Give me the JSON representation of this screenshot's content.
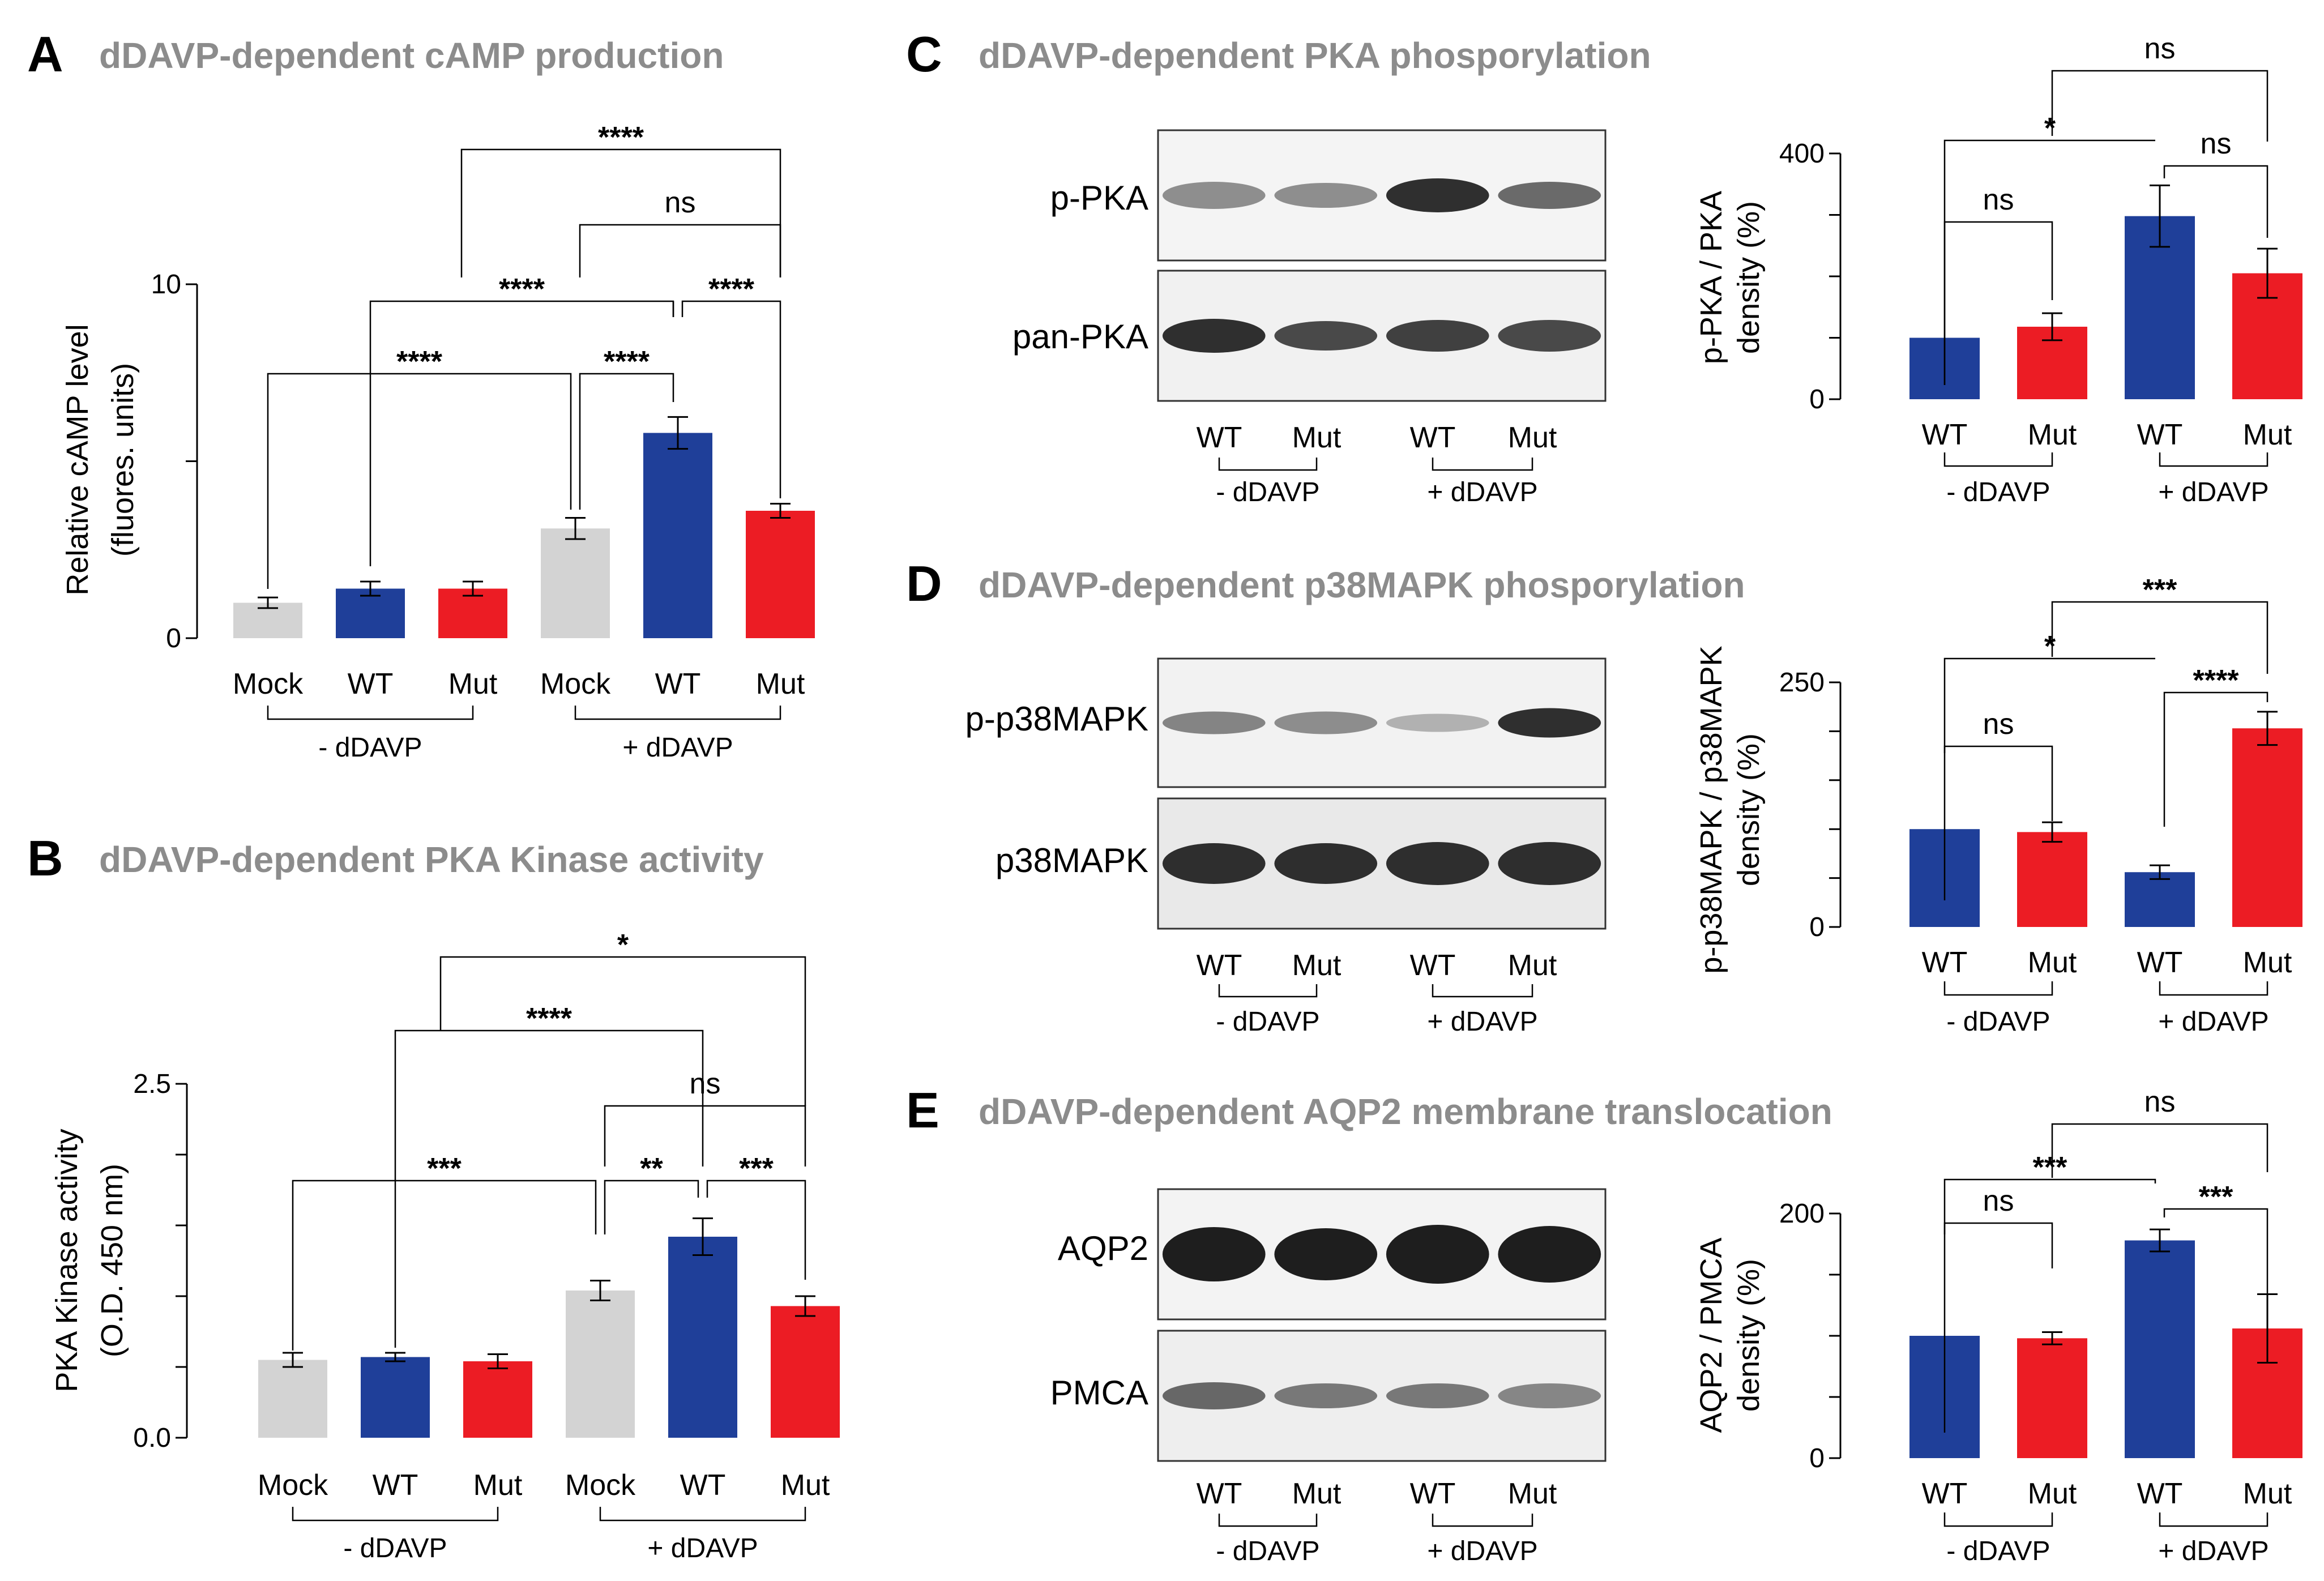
{
  "colors": {
    "mock": "#d3d3d3",
    "wt": "#1f3f99",
    "mut": "#ec1c24",
    "title_gray": "#8c8c8c",
    "blot_bg": "#efefef",
    "band": "#1a1a1a"
  },
  "panels": {
    "A": {
      "letter": "A",
      "title": "dDAVP-dependent cAMP production"
    },
    "B": {
      "letter": "B",
      "title": "dDAVP-dependent PKA Kinase activity"
    },
    "C": {
      "letter": "C",
      "title": "dDAVP-dependent PKA phosporylation",
      "blot_labels": [
        "p-PKA",
        "pan-PKA"
      ]
    },
    "D": {
      "letter": "D",
      "title": "dDAVP-dependent p38MAPK phosporylation",
      "blot_labels": [
        "p-p38MAPK",
        "p38MAPK"
      ]
    },
    "E": {
      "letter": "E",
      "title": "dDAVP-dependent AQP2 membrane translocation",
      "blot_labels": [
        "AQP2",
        "PMCA"
      ]
    }
  },
  "blot_lane_labels": [
    "WT",
    "Mut",
    "WT",
    "Mut"
  ],
  "blot_groups": [
    "- dDAVP",
    "+ dDAVP"
  ],
  "chart_data": [
    {
      "id": "A",
      "type": "bar",
      "title": "dDAVP-dependent cAMP production",
      "categories": [
        "Mock",
        "WT",
        "Mut",
        "Mock",
        "WT",
        "Mut"
      ],
      "values": [
        1.0,
        1.4,
        1.4,
        3.1,
        5.8,
        3.6
      ],
      "errors": [
        0.15,
        0.2,
        0.2,
        0.3,
        0.45,
        0.2
      ],
      "bar_colors": [
        "mock",
        "wt",
        "mut",
        "mock",
        "wt",
        "mut"
      ],
      "groups": [
        "- dDAVP",
        "+ dDAVP"
      ],
      "ylabel": [
        "Relative cAMP level",
        "(fluores. units)"
      ],
      "ylim": [
        0,
        10
      ],
      "yticks": [
        0,
        5,
        10
      ],
      "ytick_labels": [
        "0",
        "",
        "10"
      ],
      "comparisons": [
        {
          "from": 0,
          "to": 3,
          "label": "****"
        },
        {
          "from": 3,
          "to": 4,
          "label": "****"
        },
        {
          "from": 1,
          "to": 4,
          "label": "****"
        },
        {
          "from": 4,
          "to": 5,
          "label": "****"
        },
        {
          "from": 2,
          "to": 5,
          "label": "****"
        },
        {
          "from": 3,
          "to": 5,
          "label": "ns"
        },
        {
          "from": 2,
          "to": 5,
          "label": "****"
        }
      ]
    },
    {
      "id": "B",
      "type": "bar",
      "title": "dDAVP-dependent PKA Kinase activity",
      "categories": [
        "Mock",
        "WT",
        "Mut",
        "Mock",
        "WT",
        "Mut"
      ],
      "values": [
        0.55,
        0.57,
        0.54,
        1.04,
        1.42,
        0.93
      ],
      "errors": [
        0.05,
        0.03,
        0.05,
        0.07,
        0.13,
        0.07
      ],
      "bar_colors": [
        "mock",
        "wt",
        "mut",
        "mock",
        "wt",
        "mut"
      ],
      "groups": [
        "- dDAVP",
        "+ dDAVP"
      ],
      "ylabel": [
        "PKA Kinase activity",
        "(O.D. 450 nm)"
      ],
      "ylim": [
        0,
        2.5
      ],
      "yticks": [
        0,
        0.5,
        1.0,
        1.5,
        2.0,
        2.5
      ],
      "ytick_labels": [
        "0.0",
        "",
        "",
        "",
        "",
        "2.5"
      ],
      "comparisons": [
        {
          "from": 0,
          "to": 3,
          "label": "***"
        },
        {
          "from": 3,
          "to": 4,
          "label": "**"
        },
        {
          "from": 4,
          "to": 5,
          "label": "***"
        },
        {
          "from": 3,
          "to": 5,
          "label": "ns"
        },
        {
          "from": 1,
          "to": 4,
          "label": "****"
        },
        {
          "from": 2,
          "to": 5,
          "label": "*"
        }
      ]
    },
    {
      "id": "C",
      "type": "bar",
      "title": "dDAVP-dependent PKA phosporylation",
      "categories": [
        "WT",
        "Mut",
        "WT",
        "Mut"
      ],
      "values": [
        100,
        118,
        298,
        205
      ],
      "errors": [
        0,
        22,
        50,
        40
      ],
      "bar_colors": [
        "wt",
        "mut",
        "wt",
        "mut"
      ],
      "groups": [
        "- dDAVP",
        "+ dDAVP"
      ],
      "ylabel": [
        "p-PKA / PKA",
        "density (%)"
      ],
      "ylim": [
        0,
        400
      ],
      "yticks": [
        0,
        100,
        200,
        300,
        400
      ],
      "ytick_labels": [
        "0",
        "",
        "",
        "",
        "400"
      ],
      "comparisons": [
        {
          "from": 0,
          "to": 1,
          "label": "ns"
        },
        {
          "from": 0,
          "to": 2,
          "label": "*"
        },
        {
          "from": 2,
          "to": 3,
          "label": "ns"
        },
        {
          "from": 1,
          "to": 3,
          "label": "ns"
        }
      ]
    },
    {
      "id": "D",
      "type": "bar",
      "title": "dDAVP-dependent p38MAPK phosporylation",
      "categories": [
        "WT",
        "Mut",
        "WT",
        "Mut"
      ],
      "values": [
        100,
        97,
        56,
        203
      ],
      "errors": [
        0,
        10,
        7,
        17
      ],
      "bar_colors": [
        "wt",
        "mut",
        "wt",
        "mut"
      ],
      "groups": [
        "- dDAVP",
        "+ dDAVP"
      ],
      "ylabel": [
        "p-p38MAPK / p38MAPK",
        "density (%)"
      ],
      "ylim": [
        0,
        250
      ],
      "yticks": [
        0,
        50,
        100,
        150,
        200,
        250
      ],
      "ytick_labels": [
        "0",
        "",
        "",
        "",
        "",
        "250"
      ],
      "comparisons": [
        {
          "from": 0,
          "to": 1,
          "label": "ns"
        },
        {
          "from": 0,
          "to": 2,
          "label": "*"
        },
        {
          "from": 2,
          "to": 3,
          "label": "****"
        },
        {
          "from": 1,
          "to": 3,
          "label": "***"
        }
      ]
    },
    {
      "id": "E",
      "type": "bar",
      "title": "dDAVP-dependent AQP2 membrane translocation",
      "categories": [
        "WT",
        "Mut",
        "WT",
        "Mut"
      ],
      "values": [
        100,
        98,
        178,
        106
      ],
      "errors": [
        0,
        5,
        9,
        28
      ],
      "bar_colors": [
        "wt",
        "mut",
        "wt",
        "mut"
      ],
      "groups": [
        "- dDAVP",
        "+ dDAVP"
      ],
      "ylabel": [
        "AQP2 / PMCA",
        "density (%)"
      ],
      "ylim": [
        0,
        200
      ],
      "yticks": [
        0,
        50,
        100,
        150,
        200
      ],
      "ytick_labels": [
        "0",
        "",
        "",
        "",
        "200"
      ],
      "comparisons": [
        {
          "from": 0,
          "to": 1,
          "label": "ns"
        },
        {
          "from": 0,
          "to": 2,
          "label": "***"
        },
        {
          "from": 2,
          "to": 3,
          "label": "***"
        },
        {
          "from": 1,
          "to": 3,
          "label": "ns"
        }
      ]
    }
  ]
}
